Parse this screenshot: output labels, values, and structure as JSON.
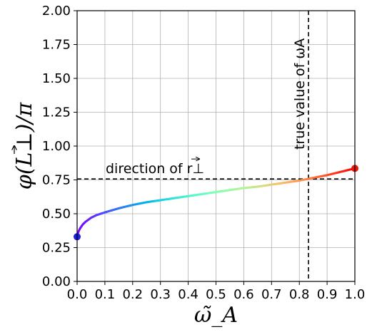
{
  "chart_data": {
    "type": "line",
    "xlabel": "ω̃_A",
    "ylabel": "φ(L⊥)/π",
    "xlim": [
      0.0,
      1.0
    ],
    "ylim": [
      0.0,
      2.0
    ],
    "xticks": [
      "0.0",
      "0.1",
      "0.2",
      "0.3",
      "0.4",
      "0.5",
      "0.6",
      "0.7",
      "0.8",
      "0.9",
      "1.0"
    ],
    "yticks": [
      "0.00",
      "0.25",
      "0.50",
      "0.75",
      "1.00",
      "1.25",
      "1.50",
      "1.75",
      "2.00"
    ],
    "grid": true,
    "series": [
      {
        "x": [
          0.0,
          0.005,
          0.01,
          0.02,
          0.03,
          0.05,
          0.07,
          0.1,
          0.15,
          0.2,
          0.25,
          0.3,
          0.35,
          0.4,
          0.45,
          0.5,
          0.55,
          0.6,
          0.65,
          0.7,
          0.75,
          0.8,
          0.83,
          0.85,
          0.9,
          0.95,
          1.0
        ],
        "y": [
          0.33,
          0.37,
          0.39,
          0.42,
          0.44,
          0.47,
          0.49,
          0.51,
          0.54,
          0.565,
          0.585,
          0.6,
          0.615,
          0.63,
          0.645,
          0.66,
          0.675,
          0.69,
          0.7,
          0.715,
          0.73,
          0.745,
          0.757,
          0.765,
          0.785,
          0.81,
          0.835
        ],
        "colormap": "rainbow"
      }
    ],
    "endpoints": [
      {
        "x": 0.0,
        "y": 0.33,
        "color": "#1f1fe0"
      },
      {
        "x": 1.0,
        "y": 0.835,
        "color": "#e8130b"
      }
    ],
    "reference_lines": {
      "horizontal": {
        "y": 0.757,
        "style": "dashed",
        "color": "#000000"
      },
      "vertical": {
        "x": 0.833,
        "style": "dashed",
        "color": "#000000"
      }
    },
    "annotations": {
      "horizontal_label": "direction of r⊥",
      "vertical_label": "true value of ωA"
    }
  }
}
